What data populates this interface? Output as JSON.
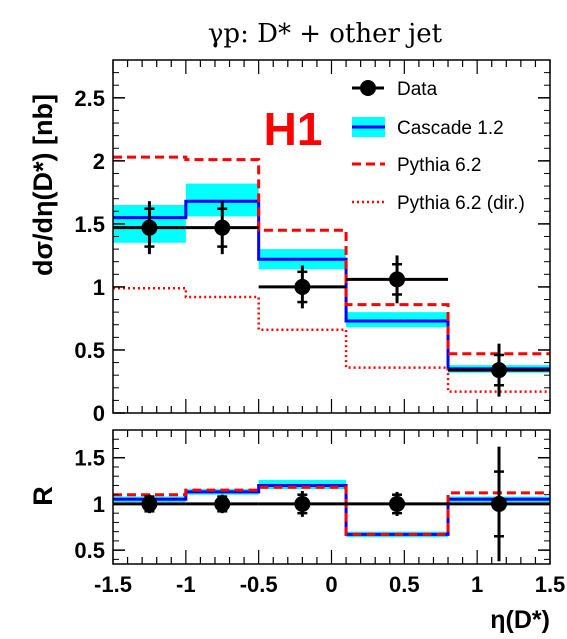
{
  "chart_data": [
    {
      "type": "line",
      "title": "γp:  D* + other jet",
      "ylabel": "dσ/dη(D*) [nb]",
      "xlim": [
        -1.5,
        1.5
      ],
      "ylim": [
        0,
        2.8
      ],
      "bin_edges": [
        -1.5,
        -1.0,
        -0.5,
        0.1,
        0.8,
        1.5
      ],
      "experiment_label": "H1",
      "yticks": [
        0,
        0.5,
        1,
        1.5,
        2,
        2.5
      ],
      "ytick_labels": [
        "0",
        "0.5",
        "1",
        "1.5",
        "2",
        "2.5"
      ],
      "legend_position": "top-right",
      "legend": [
        "Data",
        "Cascade 1.2",
        "Pythia 6.2",
        "Pythia 6.2 (dir.)"
      ],
      "series": [
        {
          "name": "Data",
          "style": "markers",
          "x": [
            -1.25,
            -0.75,
            -0.2,
            0.45,
            1.15
          ],
          "y": [
            1.47,
            1.47,
            1.0,
            1.06,
            0.34
          ],
          "stat_err": [
            0.15,
            0.15,
            0.12,
            0.12,
            0.12
          ],
          "total_err": [
            0.21,
            0.21,
            0.17,
            0.19,
            0.21
          ],
          "color": "#000000"
        },
        {
          "name": "Cascade 1.2",
          "style": "step-band",
          "values": [
            1.55,
            1.68,
            1.22,
            0.73,
            0.35
          ],
          "band_low": [
            1.35,
            1.56,
            1.14,
            0.68,
            0.32
          ],
          "band_high": [
            1.65,
            1.82,
            1.3,
            0.8,
            0.38
          ],
          "color": "#0000ff",
          "band_color": "#00ffff"
        },
        {
          "name": "Pythia 6.2",
          "style": "step-dashed",
          "values": [
            2.03,
            2.01,
            1.45,
            0.86,
            0.47
          ],
          "color": "#ff0000"
        },
        {
          "name": "Pythia 6.2 (dir.)",
          "style": "step-dotted",
          "values": [
            0.99,
            0.92,
            0.66,
            0.36,
            0.17
          ],
          "color": "#ff0000"
        }
      ]
    },
    {
      "type": "line",
      "ylabel": "R",
      "xlabel": "η(D*)",
      "xlim": [
        -1.5,
        1.5
      ],
      "ylim": [
        0.35,
        1.8
      ],
      "bin_edges": [
        -1.5,
        -1.0,
        -0.5,
        0.1,
        0.8,
        1.5
      ],
      "xticks": [
        -1.5,
        -1,
        -0.5,
        0,
        0.5,
        1,
        1.5
      ],
      "xtick_labels": [
        "-1.5",
        "-1",
        "-0.5",
        "0",
        "0.5",
        "1",
        "1.5"
      ],
      "yticks": [
        0.5,
        1,
        1.5
      ],
      "ytick_labels": [
        "0.5",
        "1",
        "1.5"
      ],
      "series": [
        {
          "name": "Data",
          "style": "markers",
          "x": [
            -1.25,
            -0.75,
            -0.2,
            0.45,
            1.15
          ],
          "y": [
            1.0,
            1.0,
            1.0,
            1.0,
            1.0
          ],
          "stat_err": [
            0.08,
            0.08,
            0.1,
            0.1,
            0.35
          ],
          "total_err": [
            0.1,
            0.1,
            0.14,
            0.13,
            0.62
          ],
          "color": "#000000"
        },
        {
          "name": "Cascade 1.2",
          "style": "step-band",
          "values": [
            1.05,
            1.13,
            1.2,
            0.67,
            1.05
          ],
          "band_low": [
            1.02,
            1.1,
            1.16,
            0.64,
            1.02
          ],
          "band_high": [
            1.08,
            1.16,
            1.26,
            0.7,
            1.08
          ],
          "color": "#0000ff",
          "band_color": "#00ffff"
        },
        {
          "name": "Pythia 6.2",
          "style": "step-dashed",
          "values": [
            1.1,
            1.15,
            1.18,
            0.67,
            1.12
          ],
          "color": "#ff0000"
        }
      ]
    }
  ]
}
